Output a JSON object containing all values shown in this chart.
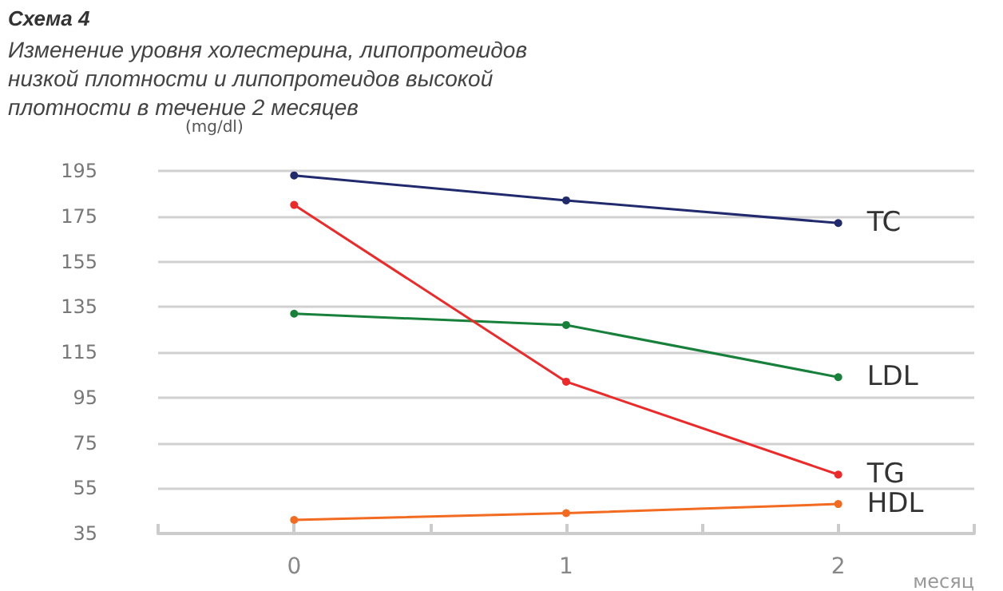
{
  "chart_data": {
    "type": "line",
    "title": "Схема 4",
    "subtitle": "Изменение уровня холестерина, липопротеидов низкой плотности и липопротеидов высокой плотности в течение 2 месяцев",
    "xlabel": "месяц",
    "ylabel": "(mg/dl)",
    "x": [
      0,
      1,
      2
    ],
    "series": [
      {
        "name": "TC",
        "color": "#222a6e",
        "values": [
          193,
          182,
          172
        ]
      },
      {
        "name": "LDL",
        "color": "#17803a",
        "values": [
          132,
          127,
          104
        ]
      },
      {
        "name": "TG",
        "color": "#ec2a2a",
        "values": [
          180,
          102,
          61
        ]
      },
      {
        "name": "HDL",
        "color": "#f26b21",
        "values": [
          41,
          44,
          48
        ]
      }
    ],
    "xlim": [
      -0.5,
      2.5
    ],
    "xticks": [
      {
        "value": -0.5,
        "label": null
      },
      0,
      {
        "value": 0.5,
        "label": null
      },
      1,
      {
        "value": 1.5,
        "label": null
      },
      2,
      {
        "value": 2.5,
        "label": null
      }
    ],
    "ylim": [
      35,
      195
    ],
    "yticks": [
      35,
      55,
      75,
      95,
      115,
      135,
      155,
      175,
      195
    ],
    "grid": "y",
    "legend": false,
    "marker": "circle",
    "line_style": "solid"
  }
}
